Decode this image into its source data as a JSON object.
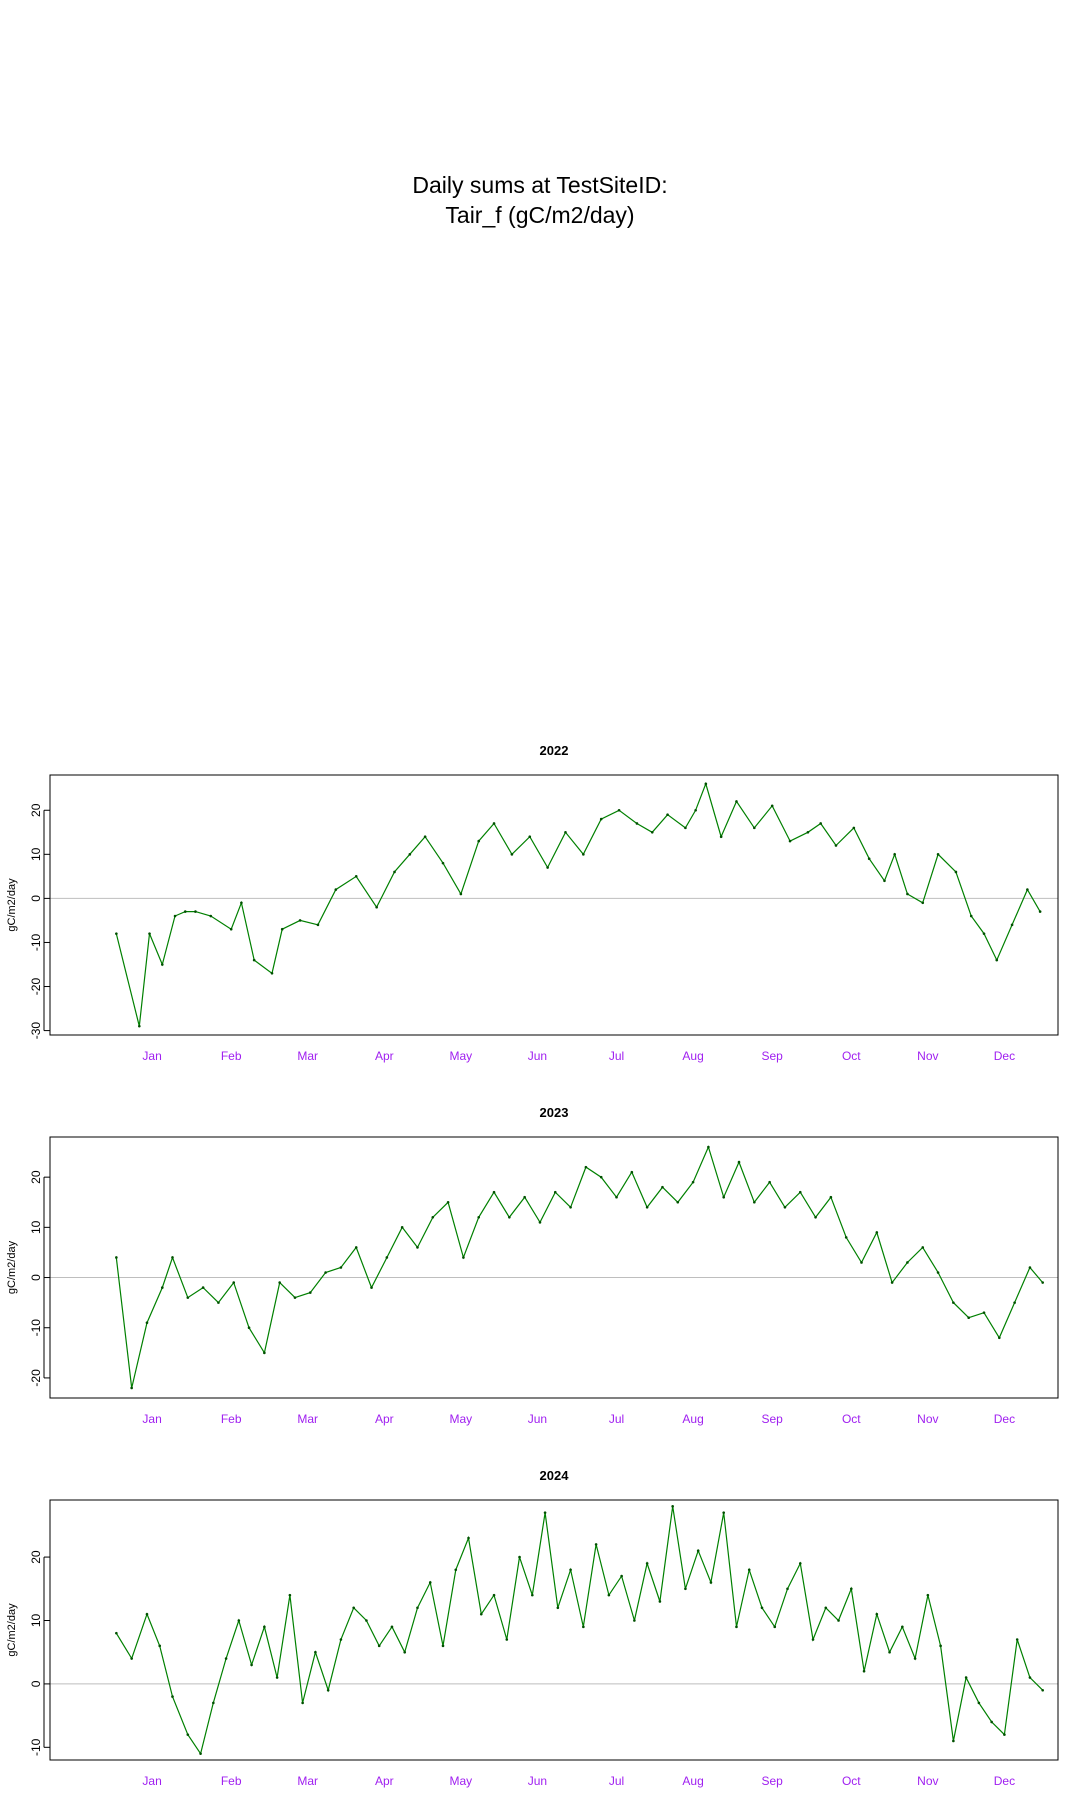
{
  "title": {
    "line1": "Daily sums at TestSiteID:",
    "line2": "Tair_f (gC/m2/day)"
  },
  "colors": {
    "line": "#008000",
    "points": "#005000",
    "zero_line": "#bebebe",
    "month_labels": "#a020f0",
    "frame": "#000000"
  },
  "chart_data": [
    {
      "type": "line",
      "title": "2022",
      "ylabel": "gC/m2/day",
      "ylim": [
        -31,
        28
      ],
      "yticks": [
        -30,
        -20,
        -10,
        0,
        10,
        20
      ],
      "x_unit": "day of year",
      "xlim": [
        -25,
        370
      ],
      "month_labels": [
        "Jan",
        "Feb",
        "Mar",
        "Apr",
        "May",
        "Jun",
        "Jul",
        "Aug",
        "Sep",
        "Oct",
        "Nov",
        "Dec"
      ],
      "month_positions": [
        15,
        46,
        76,
        106,
        136,
        166,
        197,
        227,
        258,
        289,
        319,
        349
      ],
      "zero_line": true,
      "series": [
        {
          "marker": "points",
          "x": [
            1,
            10,
            14,
            19,
            24,
            28,
            32,
            38,
            46,
            50,
            55,
            62,
            66,
            73,
            80,
            87,
            95,
            103,
            110,
            116,
            122,
            129,
            136,
            143,
            149,
            156,
            163,
            170,
            177,
            184,
            191,
            198,
            205,
            211,
            217,
            224,
            228,
            232,
            238,
            244,
            251,
            258,
            265,
            272,
            277,
            283,
            290,
            296,
            302,
            306,
            311,
            317,
            323,
            330,
            336,
            341,
            346,
            352,
            358,
            363
          ],
          "y": [
            -8,
            -29,
            -8,
            -15,
            -4,
            -3,
            -3,
            -4,
            -7,
            -1,
            -14,
            -17,
            -7,
            -5,
            -6,
            2,
            5,
            -2,
            6,
            10,
            14,
            8,
            1,
            13,
            17,
            10,
            14,
            7,
            15,
            10,
            18,
            20,
            17,
            15,
            19,
            16,
            20,
            26,
            14,
            22,
            16,
            21,
            13,
            15,
            17,
            12,
            16,
            9,
            4,
            10,
            1,
            -1,
            10,
            6,
            -4,
            -8,
            -14,
            -6,
            2,
            -3
          ]
        }
      ]
    },
    {
      "type": "line",
      "title": "2023",
      "ylabel": "gC/m2/day",
      "ylim": [
        -24,
        28
      ],
      "yticks": [
        -20,
        -10,
        0,
        10,
        20
      ],
      "x_unit": "day of year",
      "xlim": [
        -25,
        370
      ],
      "month_labels": [
        "Jan",
        "Feb",
        "Mar",
        "Apr",
        "May",
        "Jun",
        "Jul",
        "Aug",
        "Sep",
        "Oct",
        "Nov",
        "Dec"
      ],
      "month_positions": [
        15,
        46,
        76,
        106,
        136,
        166,
        197,
        227,
        258,
        289,
        319,
        349
      ],
      "zero_line": true,
      "series": [
        {
          "marker": "points",
          "x": [
            1,
            7,
            13,
            19,
            23,
            29,
            35,
            41,
            47,
            53,
            59,
            65,
            71,
            77,
            83,
            89,
            95,
            101,
            107,
            113,
            119,
            125,
            131,
            137,
            143,
            149,
            155,
            161,
            167,
            173,
            179,
            185,
            191,
            197,
            203,
            209,
            215,
            221,
            227,
            233,
            239,
            245,
            251,
            257,
            263,
            269,
            275,
            281,
            287,
            293,
            299,
            305,
            311,
            317,
            323,
            329,
            335,
            341,
            347,
            353,
            359,
            364
          ],
          "y": [
            4,
            -22,
            -9,
            -2,
            4,
            -4,
            -2,
            -5,
            -1,
            -10,
            -15,
            -1,
            -4,
            -3,
            1,
            2,
            6,
            -2,
            4,
            10,
            6,
            12,
            15,
            4,
            12,
            17,
            12,
            16,
            11,
            17,
            14,
            22,
            20,
            16,
            21,
            14,
            18,
            15,
            19,
            26,
            16,
            23,
            15,
            19,
            14,
            17,
            12,
            16,
            8,
            3,
            9,
            -1,
            3,
            6,
            1,
            -5,
            -8,
            -7,
            -12,
            -5,
            2,
            -1
          ]
        }
      ]
    },
    {
      "type": "line",
      "title": "2024",
      "ylabel": "gC/m2/day",
      "ylim": [
        -12,
        29
      ],
      "yticks": [
        -10,
        0,
        10,
        20
      ],
      "x_unit": "day of year",
      "xlim": [
        -25,
        370
      ],
      "month_labels": [
        "Jan",
        "Feb",
        "Mar",
        "Apr",
        "May",
        "Jun",
        "Jul",
        "Aug",
        "Sep",
        "Oct",
        "Nov",
        "Dec"
      ],
      "month_positions": [
        15,
        46,
        76,
        106,
        136,
        166,
        197,
        227,
        258,
        289,
        319,
        349
      ],
      "zero_line": true,
      "series": [
        {
          "marker": "points",
          "x": [
            1,
            7,
            13,
            18,
            23,
            29,
            34,
            39,
            44,
            49,
            54,
            59,
            64,
            69,
            74,
            79,
            84,
            89,
            94,
            99,
            104,
            109,
            114,
            119,
            124,
            129,
            134,
            139,
            144,
            149,
            154,
            159,
            164,
            169,
            174,
            179,
            184,
            189,
            194,
            199,
            204,
            209,
            214,
            219,
            224,
            229,
            234,
            239,
            244,
            249,
            254,
            259,
            264,
            269,
            274,
            279,
            284,
            289,
            294,
            299,
            304,
            309,
            314,
            319,
            324,
            329,
            334,
            339,
            344,
            349,
            354,
            359,
            364
          ],
          "y": [
            8,
            4,
            11,
            6,
            -2,
            -8,
            -11,
            -3,
            4,
            10,
            3,
            9,
            1,
            14,
            -3,
            5,
            -1,
            7,
            12,
            10,
            6,
            9,
            5,
            12,
            16,
            6,
            18,
            23,
            11,
            14,
            7,
            20,
            14,
            27,
            12,
            18,
            9,
            22,
            14,
            17,
            10,
            19,
            13,
            28,
            15,
            21,
            16,
            27,
            9,
            18,
            12,
            9,
            15,
            19,
            7,
            12,
            10,
            15,
            2,
            11,
            5,
            9,
            4,
            14,
            6,
            -9,
            1,
            -3,
            -6,
            -8,
            7,
            1,
            -1
          ]
        }
      ]
    }
  ]
}
